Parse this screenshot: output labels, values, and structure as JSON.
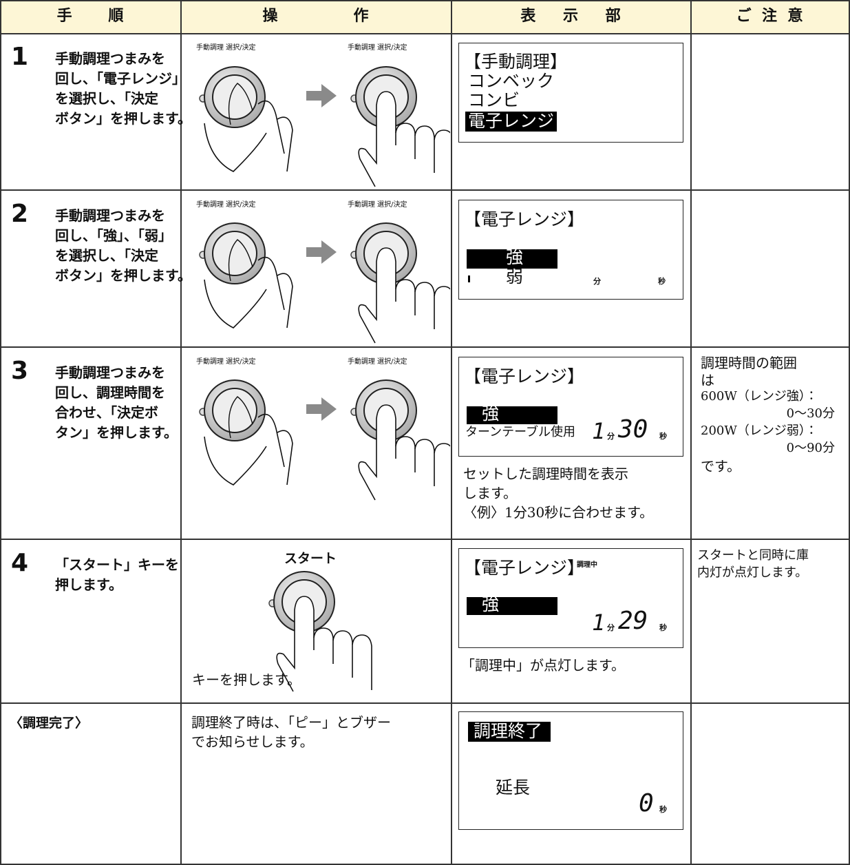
{
  "header": {
    "step": "手順",
    "operation": "操作",
    "display": "表示部",
    "notes": "ご注意"
  },
  "rows": [
    {
      "step": {
        "number": "1",
        "lines": [
          "手動調理つまみを",
          "回し、「電子レンジ」",
          "を選択し、「決定",
          "ボタン」を押します。"
        ]
      },
      "operation": {
        "dial_labels": [
          "手動調理 選択/決定",
          "手動調理 選択/決定"
        ]
      },
      "display": {
        "screen": [
          "【手動調理】",
          "コンベック",
          "コンビ",
          "電子レンジ"
        ]
      }
    },
    {
      "step": {
        "number": "2",
        "lines": [
          "手動調理つまみを",
          "回し、「強」、「弱」",
          "を選択し、「決定",
          "ボタン」を押します。"
        ]
      },
      "operation": {
        "dial_labels": [
          "手動調理 選択/決定",
          "手動調理 選択/決定"
        ]
      },
      "display": {
        "screen": [
          "【電子レンジ】",
          "強",
          "弱",
          "分",
          "秒"
        ]
      }
    },
    {
      "step": {
        "number": "3",
        "lines": [
          "手動調理つまみを",
          "回し、調理時間を",
          "合わせ、「決定ボ",
          "タン」を押します。"
        ]
      },
      "operation": {
        "dial_labels": [
          "手動調理 選択/決定",
          "手動調理 選択/決定"
        ]
      },
      "display": {
        "screen": [
          "【電子レンジ】",
          "強",
          "ターンテーブル使用",
          "1",
          "分",
          "30",
          "秒"
        ],
        "caption": [
          "セットした調理時間を表示",
          "します。",
          "〈例〉1分30秒に合わせます。"
        ]
      },
      "notes": [
        "調理時間の範囲",
        "は",
        "600W（レンジ強）：",
        "0〜30分",
        "200W（レンジ弱）：",
        "0〜90分",
        "です。"
      ]
    },
    {
      "step": {
        "number": "4",
        "lines": [
          "「スタート」キーを",
          "押します。"
        ]
      },
      "operation": {
        "key_label": "スタート",
        "caption": "キーを押します。"
      },
      "display": {
        "screen": [
          "【電子レンジ】",
          "調理中",
          "強",
          "1",
          "分",
          "29",
          "秒"
        ],
        "caption": [
          "「調理中」が点灯します。"
        ]
      },
      "notes": [
        "スタートと同時に庫",
        "内灯が点灯します。"
      ]
    },
    {
      "step": {
        "label": "〈調理完了〉"
      },
      "operation": {
        "caption": [
          "調理終了時は、「ピー」とブザー",
          "でお知らせします。"
        ]
      },
      "display": {
        "screen": [
          "調理終了",
          "延長",
          "0",
          "秒"
        ]
      }
    }
  ]
}
